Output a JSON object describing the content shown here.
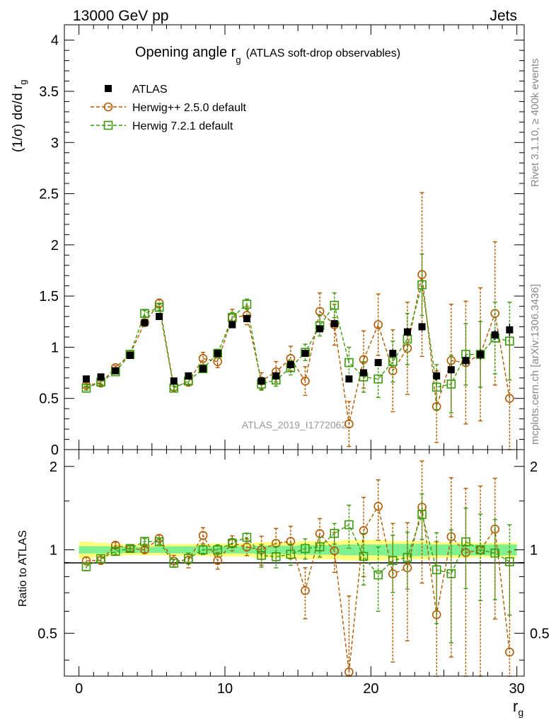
{
  "header": {
    "left": "13000 GeV pp",
    "right": "Jets"
  },
  "side_labels": {
    "rivet": "Rivet 3.1.10, ≥ 400k events",
    "mcplots": "mcplots.cern.ch [arXiv:1306.3436]"
  },
  "colors": {
    "atlas": "#000000",
    "herwig25": "#b35a00",
    "herwig72": "#3a9a0a",
    "band_inner": "#7ff08f",
    "band_outer": "#ffff7a",
    "watermark": "#999999"
  },
  "chart_data": {
    "type": "scatter",
    "title_main": "Opening angle r",
    "title_sub": "g",
    "title_paren": "(ATLAS soft-drop observables)",
    "analysis_id": "ATLAS_2019_I1772062",
    "xlabel": "r",
    "xlabel_sub": "g",
    "ylabel_main": "(1/σ) dσ/d r",
    "ylabel_sub": "g",
    "ylabel_ratio": "Ratio to ATLAS",
    "xlim": [
      -1,
      30.5
    ],
    "ylim_main": [
      0,
      4.15
    ],
    "ylim_ratio": [
      0.35,
      2.3
    ],
    "main_yticks": [
      0,
      0.5,
      1,
      1.5,
      2,
      2.5,
      3,
      3.5,
      4
    ],
    "main_ytick_labels": [
      "0",
      "0.5",
      "1",
      "1.5",
      "2",
      "2.5",
      "3",
      "3.5",
      "4"
    ],
    "ratio_yticks": [
      0.5,
      1,
      2
    ],
    "ratio_ytick_labels": [
      "0.5",
      "1",
      "2"
    ],
    "xticks": [
      0,
      10,
      20,
      30
    ],
    "xtick_labels": [
      "0",
      "10",
      "20",
      "30"
    ],
    "x": [
      0.5,
      1.5,
      2.5,
      3.5,
      4.5,
      5.5,
      6.5,
      7.5,
      8.5,
      9.5,
      10.5,
      11.5,
      12.5,
      13.5,
      14.5,
      15.5,
      16.5,
      17.5,
      18.5,
      19.5,
      20.5,
      21.5,
      22.5,
      23.5,
      24.5,
      25.5,
      26.5,
      27.5,
      28.5,
      29.5
    ],
    "series": [
      {
        "name": "ATLAS",
        "style": "data",
        "values": [
          0.69,
          0.71,
          0.77,
          0.92,
          1.24,
          1.3,
          0.67,
          0.72,
          0.79,
          0.94,
          1.22,
          1.28,
          0.67,
          0.72,
          0.83,
          0.94,
          1.18,
          1.23,
          0.69,
          0.75,
          0.85,
          0.94,
          1.15,
          1.2,
          0.72,
          0.78,
          0.87,
          0.93,
          1.12,
          1.17
        ],
        "errors": [
          0.02,
          0.02,
          0.02,
          0.02,
          0.02,
          0.02,
          0.02,
          0.02,
          0.02,
          0.02,
          0.02,
          0.02,
          0.02,
          0.02,
          0.02,
          0.03,
          0.03,
          0.03,
          0.03,
          0.03,
          0.03,
          0.04,
          0.04,
          0.04,
          0.04,
          0.04,
          0.05,
          0.05,
          0.05,
          0.06
        ]
      },
      {
        "name": "Herwig++ 2.5.0 default",
        "style": "circle",
        "values": [
          0.63,
          0.65,
          0.8,
          0.93,
          1.24,
          1.43,
          0.61,
          0.66,
          0.89,
          0.86,
          1.29,
          1.31,
          0.67,
          0.76,
          0.89,
          0.67,
          1.35,
          1.22,
          0.25,
          0.88,
          1.22,
          0.77,
          0.99,
          1.71,
          0.42,
          0.87,
          0.85,
          0.93,
          1.33,
          0.5
        ],
        "errors": [
          0.02,
          0.02,
          0.02,
          0.03,
          0.03,
          0.04,
          0.03,
          0.04,
          0.06,
          0.06,
          0.08,
          0.09,
          0.08,
          0.1,
          0.12,
          0.14,
          0.18,
          0.2,
          0.22,
          0.28,
          0.3,
          0.4,
          0.45,
          0.8,
          0.35,
          0.55,
          0.6,
          0.65,
          0.7,
          0.65
        ]
      },
      {
        "name": "Herwig 7.2.1 default",
        "style": "square",
        "values": [
          0.6,
          0.66,
          0.76,
          0.93,
          1.33,
          1.39,
          0.6,
          0.67,
          0.79,
          0.94,
          1.29,
          1.42,
          0.64,
          0.68,
          0.8,
          0.95,
          1.21,
          1.41,
          0.85,
          0.71,
          0.69,
          0.86,
          1.08,
          1.61,
          0.61,
          0.64,
          0.93,
          0.93,
          1.09,
          1.06
        ],
        "errors": [
          0.02,
          0.02,
          0.02,
          0.02,
          0.03,
          0.03,
          0.02,
          0.03,
          0.03,
          0.04,
          0.05,
          0.05,
          0.06,
          0.06,
          0.07,
          0.08,
          0.1,
          0.12,
          0.15,
          0.15,
          0.18,
          0.2,
          0.25,
          0.3,
          0.22,
          0.28,
          0.3,
          0.32,
          0.35,
          0.38
        ]
      }
    ],
    "legend": [
      "ATLAS",
      "Herwig++ 2.5.0 default",
      "Herwig 7.2.1 default"
    ],
    "band_inner_rel": [
      0.03,
      0.03,
      0.03,
      0.025,
      0.025,
      0.025,
      0.03,
      0.03,
      0.03,
      0.03,
      0.03,
      0.03,
      0.035,
      0.035,
      0.035,
      0.04,
      0.04,
      0.04,
      0.045,
      0.045,
      0.045,
      0.05,
      0.05,
      0.05,
      0.045,
      0.045,
      0.045,
      0.045,
      0.045,
      0.045
    ],
    "band_outer_rel": [
      0.07,
      0.06,
      0.05,
      0.045,
      0.045,
      0.045,
      0.05,
      0.05,
      0.05,
      0.055,
      0.055,
      0.055,
      0.065,
      0.065,
      0.065,
      0.075,
      0.075,
      0.075,
      0.085,
      0.085,
      0.085,
      0.075,
      0.075,
      0.075,
      0.065,
      0.065,
      0.065,
      0.06,
      0.06,
      0.06
    ]
  }
}
